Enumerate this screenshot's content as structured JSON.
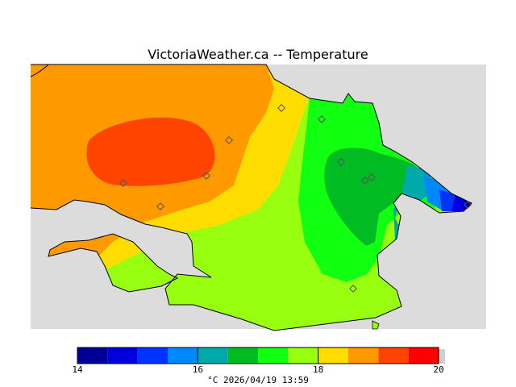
{
  "title": "VictoriaWeather.ca -- Temperature",
  "colorbar": {
    "colors": [
      "#000099",
      "#0000dd",
      "#0033ff",
      "#0088ff",
      "#00aaaa",
      "#00bb22",
      "#11ff11",
      "#99ff11",
      "#ffdd00",
      "#ff9900",
      "#ff4400",
      "#ff0000"
    ],
    "ticks": [
      {
        "value": "14",
        "pos": 0
      },
      {
        "value": "16",
        "pos": 4
      },
      {
        "value": "18",
        "pos": 8
      },
      {
        "value": "20",
        "pos": 12
      }
    ]
  },
  "footer": {
    "unit": "°C",
    "timestamp": "2026/04/19 13:59"
  },
  "stations": [
    {
      "id": "s1"
    },
    {
      "id": "s2"
    },
    {
      "id": "s3"
    },
    {
      "id": "s4"
    },
    {
      "id": "s5"
    },
    {
      "id": "s6"
    },
    {
      "id": "s7"
    },
    {
      "id": "s8"
    },
    {
      "id": "s9"
    },
    {
      "id": "s10"
    },
    {
      "id": "s11"
    }
  ]
}
